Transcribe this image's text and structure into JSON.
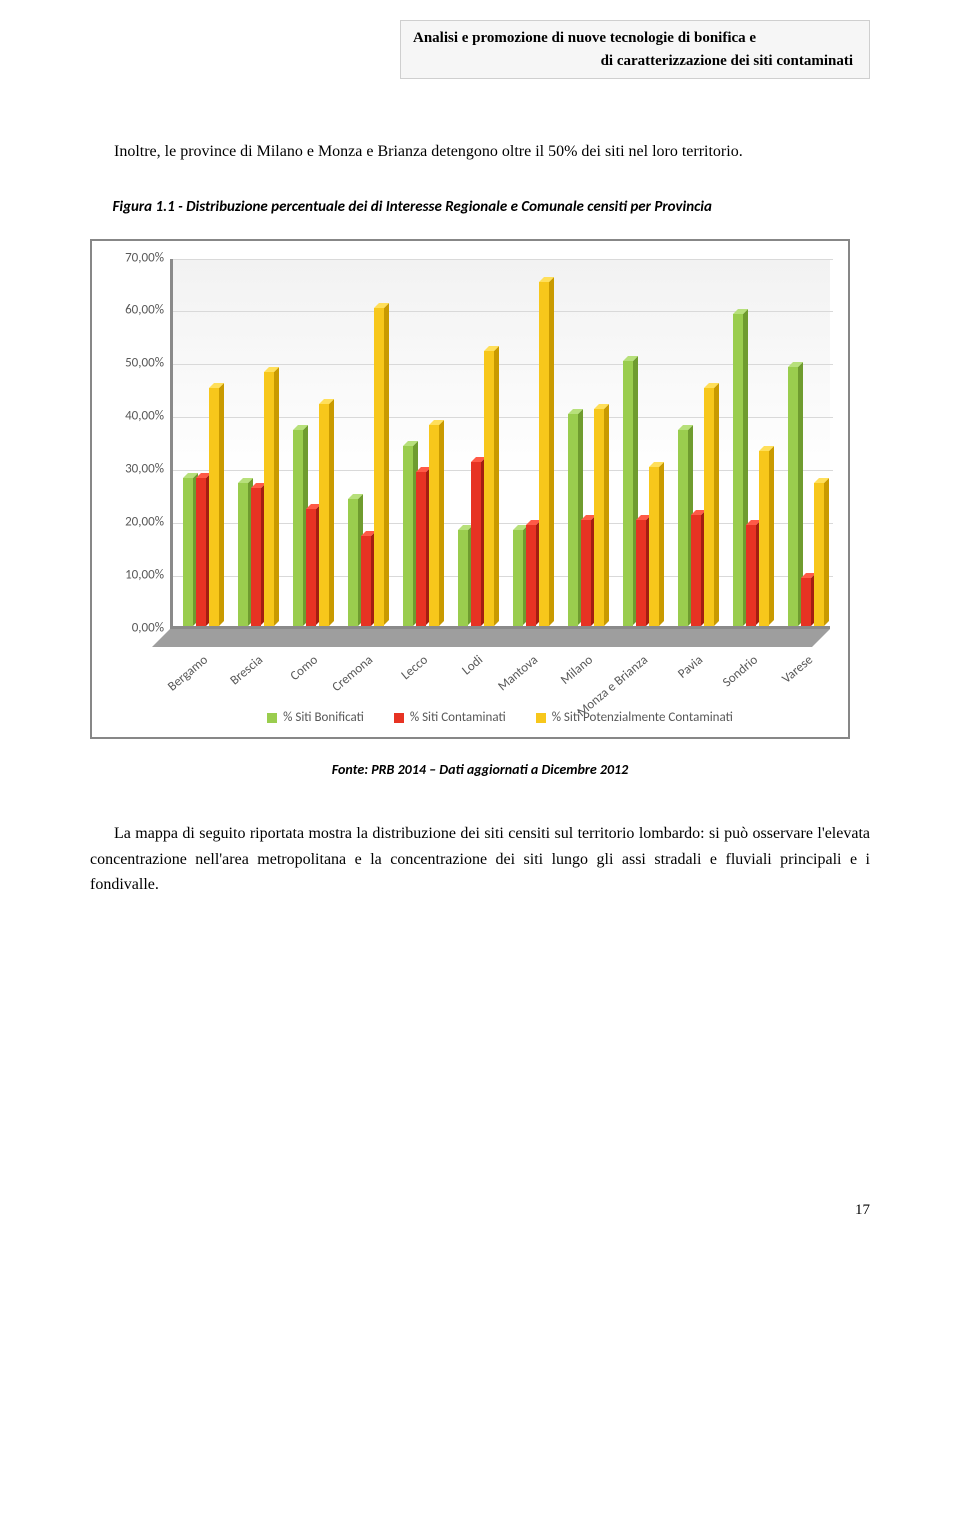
{
  "header": {
    "line1": "Analisi e promozione di nuove tecnologie di bonifica e",
    "line2": "di caratterizzazione dei siti contaminati"
  },
  "paragraph1": "Inoltre, le province di Milano e Monza e Brianza detengono oltre il 50% dei siti nel loro territorio.",
  "figure_caption": "Figura 1.1 - Distribuzione percentuale dei di Interesse Regionale e Comunale censiti per Provincia",
  "chart": {
    "ylabel_format": "percent",
    "ylim": [
      0,
      70
    ],
    "ytick_step": 10,
    "yticks": [
      "0,00%",
      "10,00%",
      "20,00%",
      "30,00%",
      "40,00%",
      "50,00%",
      "60,00%",
      "70,00%"
    ],
    "categories": [
      "Bergamo",
      "Brescia",
      "Como",
      "Cremona",
      "Lecco",
      "Lodi",
      "Mantova",
      "Milano",
      "Monza e Brianza",
      "Pavia",
      "Sondrio",
      "Varese"
    ],
    "series": [
      {
        "name": "% Siti Bonificati",
        "color_front": "#9acd4e",
        "color_top": "#b7e07b",
        "color_side": "#6f9c2f",
        "values": [
          28,
          27,
          37,
          24,
          34,
          18,
          18,
          40,
          50,
          37,
          59,
          49
        ]
      },
      {
        "name": "% Siti Contaminati",
        "color_front": "#e73323",
        "color_top": "#ff5a47",
        "color_side": "#a31e12",
        "values": [
          28,
          26,
          22,
          17,
          29,
          31,
          19,
          20,
          20,
          21,
          19,
          9
        ]
      },
      {
        "name": "% Siti Potenzialmente Contaminati",
        "color_front": "#f7c71b",
        "color_top": "#ffdf5a",
        "color_side": "#c99a00",
        "values": [
          45,
          48,
          42,
          60,
          38,
          52,
          65,
          41,
          30,
          45,
          33,
          27
        ]
      }
    ],
    "plot_background": "#ffffff",
    "grid_color": "#d9d9d9",
    "axis_font_color": "#595959",
    "axis_font_size": 13
  },
  "source": "Fonte: PRB 2014 – Dati aggiornati a Dicembre 2012",
  "paragraph2": "La mappa di seguito riportata mostra la distribuzione dei siti censiti sul territorio lombardo: si può osservare l'elevata concentrazione nell'area metropolitana e la concentrazione dei siti lungo gli assi stradali e fluviali principali e i fondivalle.",
  "page_number": "17"
}
